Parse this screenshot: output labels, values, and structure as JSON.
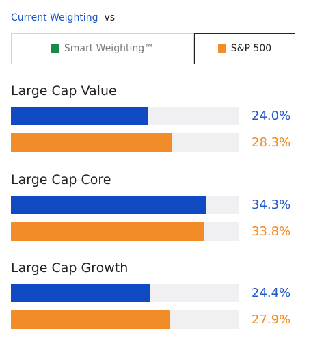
{
  "header": {
    "current_link": "Current Weighting",
    "vs": "vs"
  },
  "toggle": {
    "options": [
      {
        "label": "Smart Weighting™",
        "color": "#1a8a4a",
        "selected": false
      },
      {
        "label": "S&P 500",
        "color": "#f28c28",
        "selected": true
      }
    ]
  },
  "colors": {
    "current": "#0f4ac2",
    "benchmark": "#f28c28",
    "current_text": "#2358c8",
    "benchmark_text": "#f08a24"
  },
  "chart_data": {
    "type": "bar",
    "orientation": "horizontal",
    "xlim": [
      0,
      40
    ],
    "groups": [
      {
        "name": "Large Cap Value",
        "current": 24.0,
        "benchmark": 28.3,
        "current_label": "24.0%",
        "benchmark_label": "28.3%"
      },
      {
        "name": "Large Cap Core",
        "current": 34.3,
        "benchmark": 33.8,
        "current_label": "34.3%",
        "benchmark_label": "33.8%"
      },
      {
        "name": "Large Cap Growth",
        "current": 24.4,
        "benchmark": 27.9,
        "current_label": "24.4%",
        "benchmark_label": "27.9%"
      }
    ]
  }
}
